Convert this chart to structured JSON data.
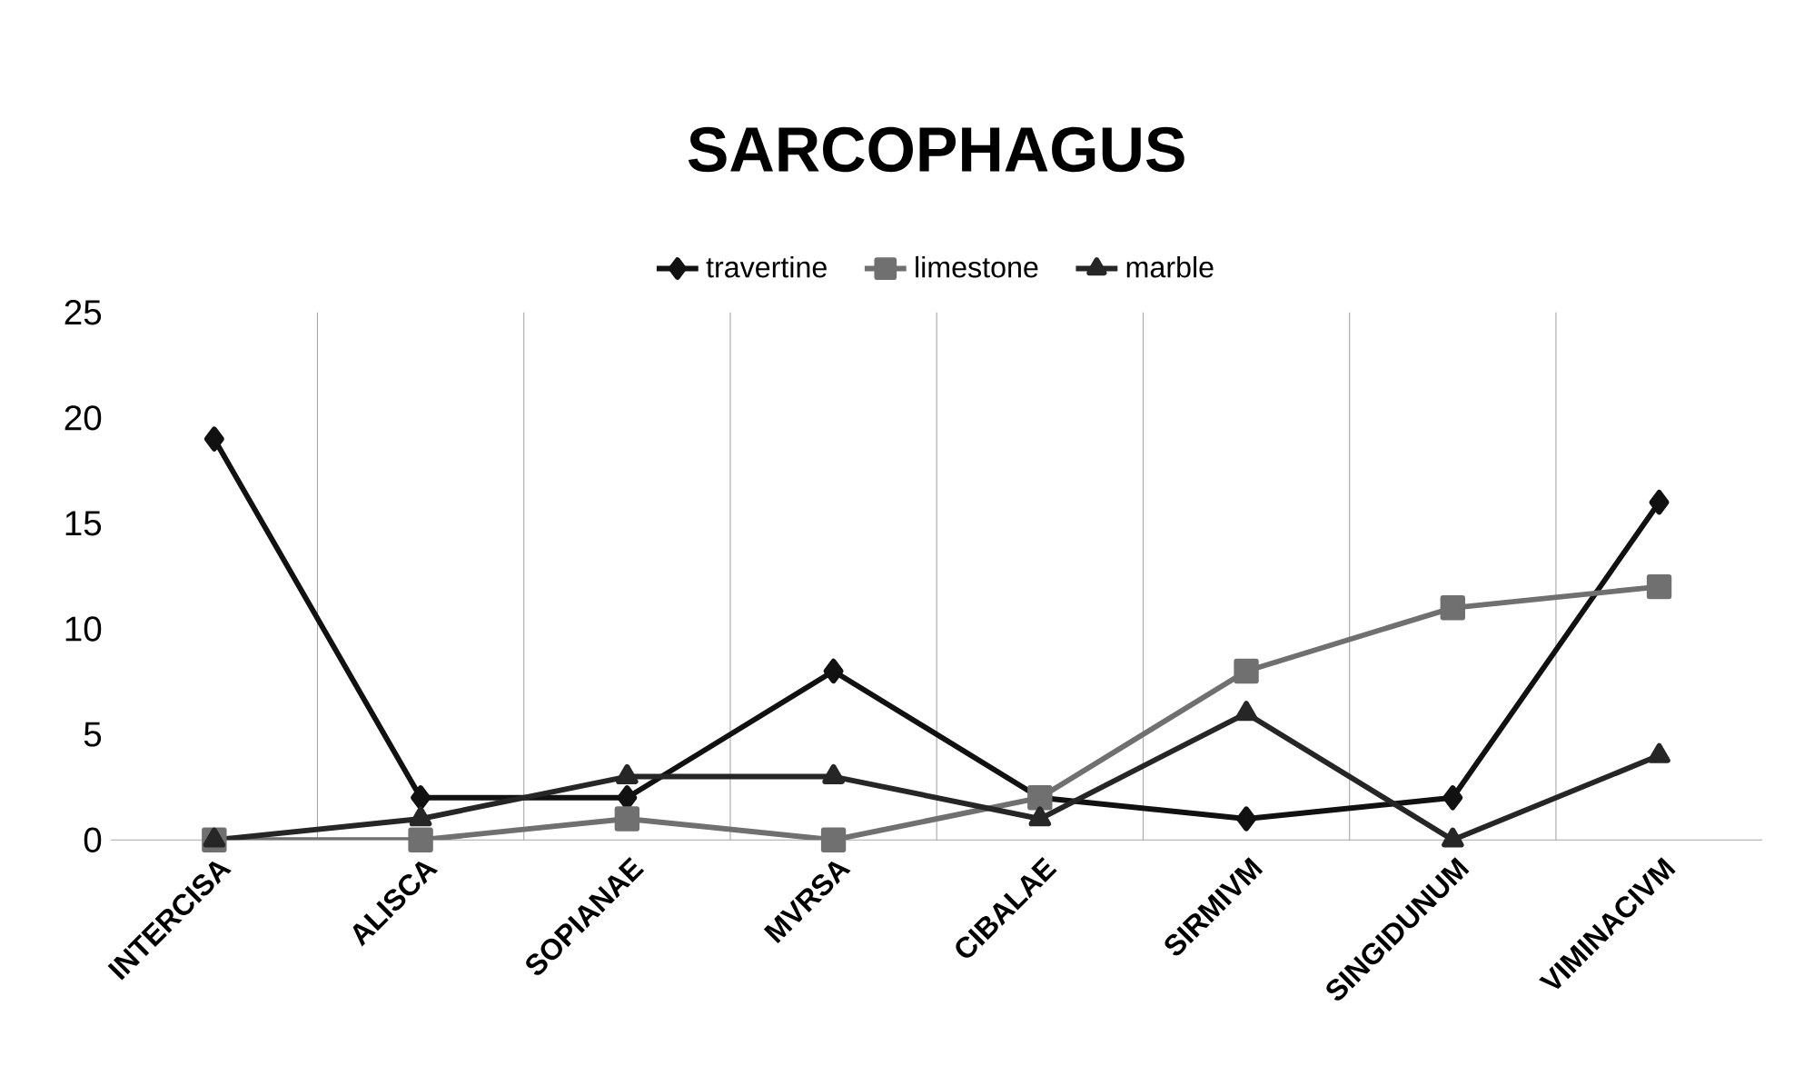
{
  "chart_data": {
    "type": "line",
    "title": "SARCOPHAGUS",
    "categories": [
      "INTERCISA",
      "ALISCA",
      "SOPIANAE",
      "MVRSA",
      "CIBALAE",
      "SIRMIVM",
      "SINGIDUNUM",
      "VIMINACIVM"
    ],
    "series": [
      {
        "name": "travertine",
        "color": "#111111",
        "marker": "diamond",
        "values": [
          19,
          2,
          2,
          8,
          2,
          1,
          2,
          16
        ]
      },
      {
        "name": "limestone",
        "color": "#707070",
        "marker": "square",
        "values": [
          0,
          0,
          1,
          0,
          2,
          8,
          11,
          12
        ]
      },
      {
        "name": "marble",
        "color": "#262626",
        "marker": "triangle",
        "values": [
          0,
          1,
          3,
          3,
          1,
          6,
          0,
          4
        ]
      }
    ],
    "ylim": [
      0,
      25
    ],
    "yticks": [
      0,
      5,
      10,
      15,
      20,
      25
    ],
    "grid": "x",
    "legend": "top",
    "line_style": "solid"
  }
}
